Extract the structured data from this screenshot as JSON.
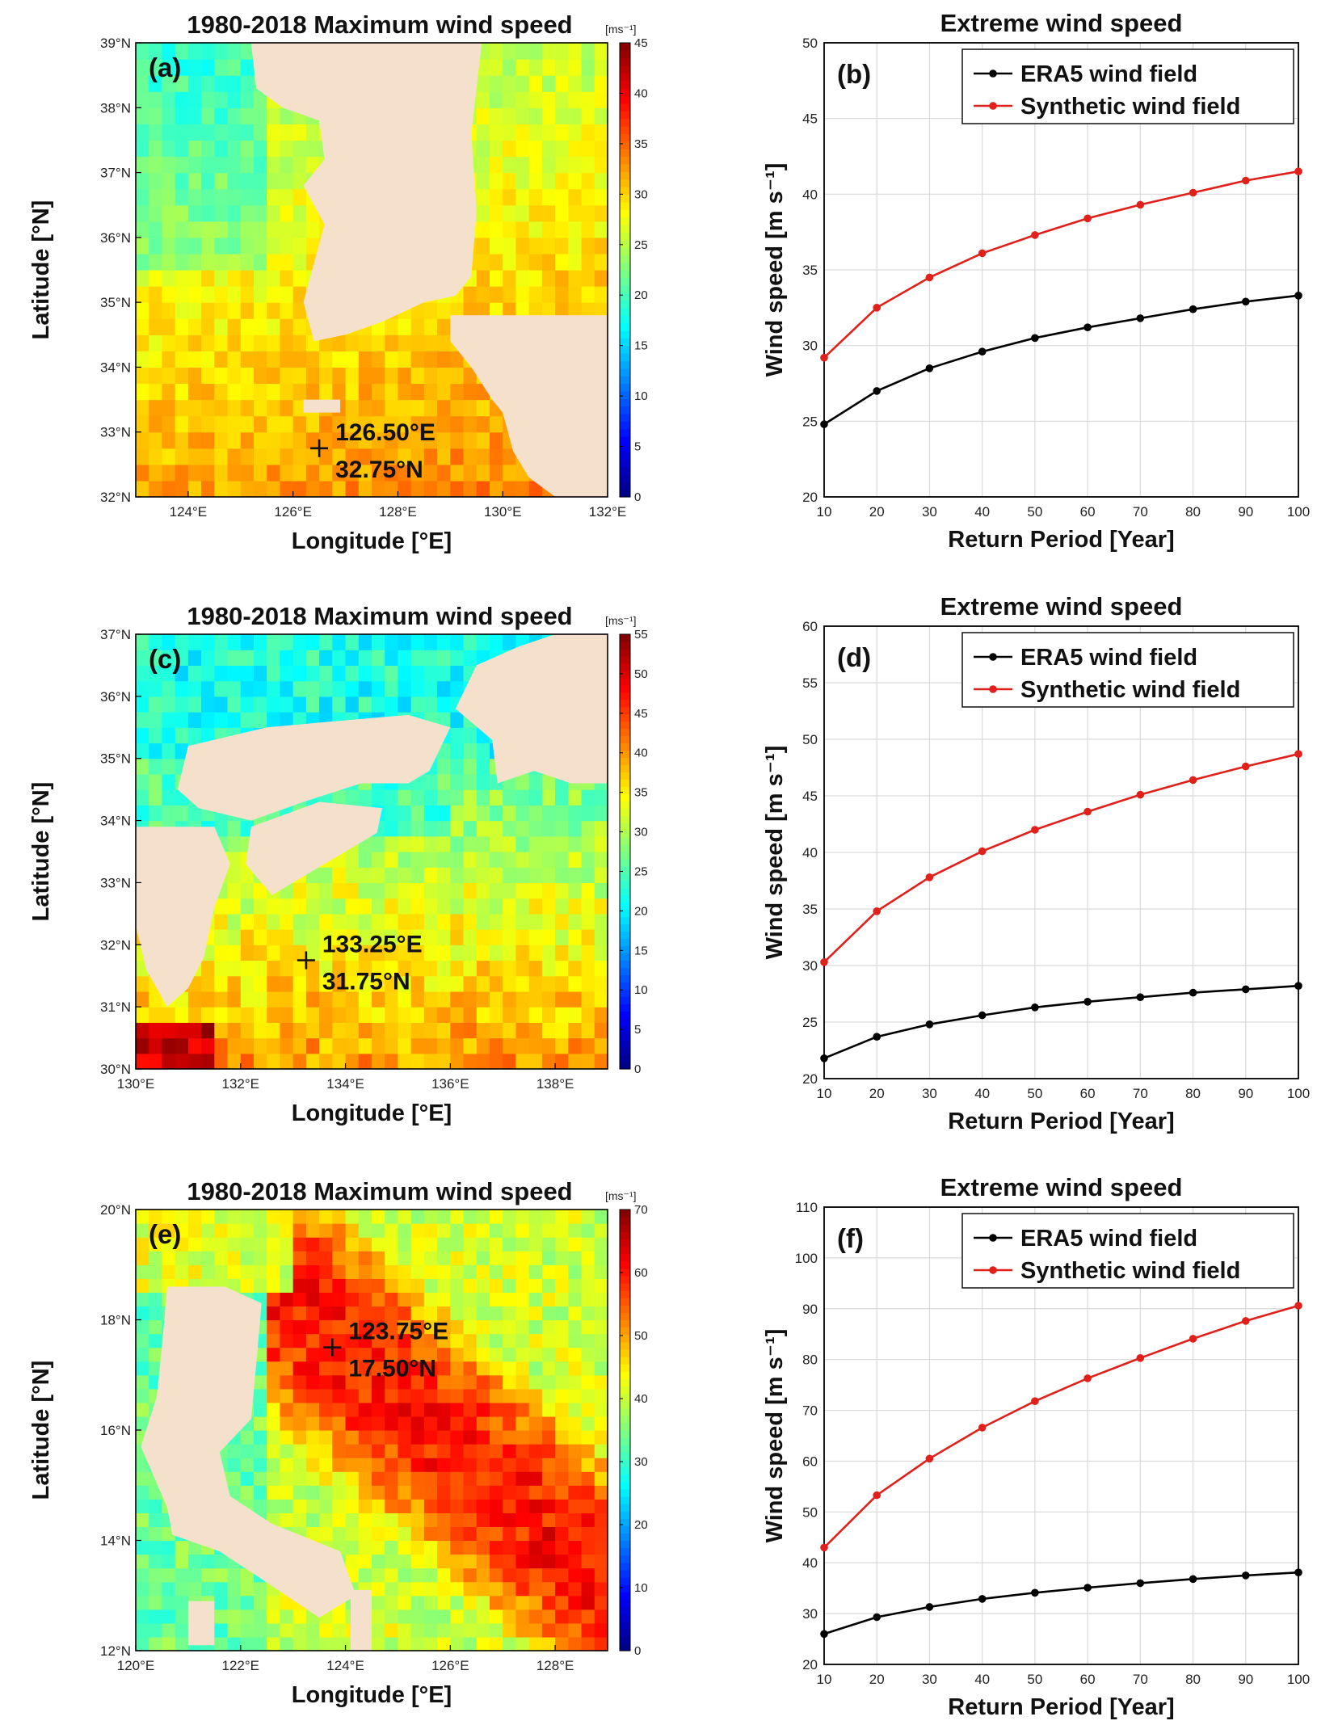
{
  "chart_data": [
    {
      "type": "heatmap",
      "panel_label": "(a)",
      "title": "1980-2018 Maximum wind speed",
      "colorbar_unit": "[ms⁻¹]",
      "xlabel": "Longitude [°E]",
      "ylabel": "Latitude [°N]",
      "xlim": [
        123,
        132
      ],
      "ylim": [
        32,
        39
      ],
      "xticks": [
        "124°E",
        "126°E",
        "128°E",
        "130°E",
        "132°E"
      ],
      "yticks": [
        "32°N",
        "33°N",
        "34°N",
        "35°N",
        "36°N",
        "37°N",
        "38°N",
        "39°N"
      ],
      "colorbar_ticks": [
        "0",
        "5",
        "10",
        "15",
        "20",
        "25",
        "30",
        "35",
        "40",
        "45"
      ],
      "colorbar_range": [
        0,
        45
      ],
      "marker_lon": "126.50°E",
      "marker_lat": "32.75°N",
      "marker_lon_value": 126.5,
      "marker_lat_value": 32.75
    },
    {
      "type": "line",
      "panel_label": "(b)",
      "title": "Extreme wind speed",
      "xlabel": "Return Period [Year]",
      "ylabel": "Wind speed [m s⁻¹]",
      "x": [
        10,
        20,
        30,
        40,
        50,
        60,
        70,
        80,
        90,
        100
      ],
      "ylim": [
        20,
        50
      ],
      "xticks": [
        "10",
        "20",
        "30",
        "40",
        "50",
        "60",
        "70",
        "80",
        "90",
        "100"
      ],
      "yticks": [
        "20",
        "25",
        "30",
        "35",
        "40",
        "45",
        "50"
      ],
      "grid": true,
      "legend_position": "top-right",
      "series": [
        {
          "name": "ERA5 wind field",
          "color": "#000000",
          "values": [
            24.8,
            27.0,
            28.5,
            29.6,
            30.5,
            31.2,
            31.8,
            32.4,
            32.9,
            33.3
          ]
        },
        {
          "name": "Synthetic wind field",
          "color": "#e0201b",
          "values": [
            29.2,
            32.5,
            34.5,
            36.1,
            37.3,
            38.4,
            39.3,
            40.1,
            40.9,
            41.5
          ]
        }
      ]
    },
    {
      "type": "heatmap",
      "panel_label": "(c)",
      "title": "1980-2018 Maximum wind speed",
      "colorbar_unit": "[ms⁻¹]",
      "xlabel": "Longitude [°E]",
      "ylabel": "Latitude [°N]",
      "xlim": [
        130,
        139
      ],
      "ylim": [
        30,
        37
      ],
      "xticks": [
        "130°E",
        "132°E",
        "134°E",
        "136°E",
        "138°E"
      ],
      "yticks": [
        "30°N",
        "31°N",
        "32°N",
        "33°N",
        "34°N",
        "35°N",
        "36°N",
        "37°N"
      ],
      "colorbar_ticks": [
        "0",
        "5",
        "10",
        "15",
        "20",
        "25",
        "30",
        "35",
        "40",
        "45",
        "50",
        "55"
      ],
      "colorbar_range": [
        0,
        55
      ],
      "marker_lon": "133.25°E",
      "marker_lat": "31.75°N",
      "marker_lon_value": 133.25,
      "marker_lat_value": 31.75
    },
    {
      "type": "line",
      "panel_label": "(d)",
      "title": "Extreme wind speed",
      "xlabel": "Return Period [Year]",
      "ylabel": "Wind speed [m s⁻¹]",
      "x": [
        10,
        20,
        30,
        40,
        50,
        60,
        70,
        80,
        90,
        100
      ],
      "ylim": [
        20,
        60
      ],
      "xticks": [
        "10",
        "20",
        "30",
        "40",
        "50",
        "60",
        "70",
        "80",
        "90",
        "100"
      ],
      "yticks": [
        "20",
        "25",
        "30",
        "35",
        "40",
        "45",
        "50",
        "55",
        "60"
      ],
      "grid": true,
      "legend_position": "top-right",
      "series": [
        {
          "name": "ERA5 wind field",
          "color": "#000000",
          "values": [
            21.8,
            23.7,
            24.8,
            25.6,
            26.3,
            26.8,
            27.2,
            27.6,
            27.9,
            28.2
          ]
        },
        {
          "name": "Synthetic wind field",
          "color": "#e0201b",
          "values": [
            30.3,
            34.8,
            37.8,
            40.1,
            42.0,
            43.6,
            45.1,
            46.4,
            47.6,
            48.7
          ]
        }
      ]
    },
    {
      "type": "heatmap",
      "panel_label": "(e)",
      "title": "1980-2018 Maximum wind speed",
      "colorbar_unit": "[ms⁻¹]",
      "xlabel": "Longitude [°E]",
      "ylabel": "Latitude [°N]",
      "xlim": [
        120,
        129
      ],
      "ylim": [
        12,
        20
      ],
      "xticks": [
        "120°E",
        "122°E",
        "124°E",
        "126°E",
        "128°E"
      ],
      "yticks": [
        "12°N",
        "14°N",
        "16°N",
        "18°N",
        "20°N"
      ],
      "colorbar_ticks": [
        "0",
        "10",
        "20",
        "30",
        "40",
        "50",
        "60",
        "70"
      ],
      "colorbar_range": [
        0,
        70
      ],
      "marker_lon": "123.75°E",
      "marker_lat": "17.50°N",
      "marker_lon_value": 123.75,
      "marker_lat_value": 17.5
    },
    {
      "type": "line",
      "panel_label": "(f)",
      "title": "Extreme wind speed",
      "xlabel": "Return Period [Year]",
      "ylabel": "Wind speed [m s⁻¹]",
      "x": [
        10,
        20,
        30,
        40,
        50,
        60,
        70,
        80,
        90,
        100
      ],
      "ylim": [
        20,
        110
      ],
      "xticks": [
        "10",
        "20",
        "30",
        "40",
        "50",
        "60",
        "70",
        "80",
        "90",
        "100"
      ],
      "yticks": [
        "20",
        "30",
        "40",
        "50",
        "60",
        "70",
        "80",
        "90",
        "100",
        "110"
      ],
      "grid": true,
      "legend_position": "top-right",
      "series": [
        {
          "name": "ERA5 wind field",
          "color": "#000000",
          "values": [
            26.0,
            29.3,
            31.3,
            32.9,
            34.1,
            35.1,
            36.0,
            36.8,
            37.5,
            38.1
          ]
        },
        {
          "name": "Synthetic wind field",
          "color": "#e0201b",
          "values": [
            43.0,
            53.3,
            60.5,
            66.6,
            71.8,
            76.3,
            80.3,
            84.1,
            87.6,
            90.6
          ]
        }
      ]
    }
  ]
}
